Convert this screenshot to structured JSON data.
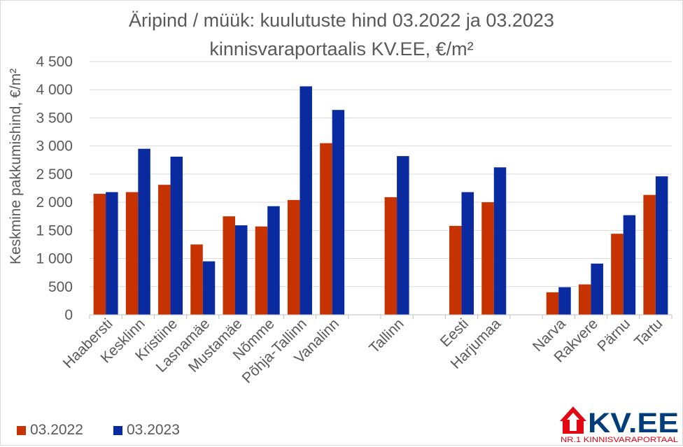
{
  "chart_data": {
    "type": "bar",
    "title": "Äripind / müük: kuulutuste hind 03.2022 ja 03.2023",
    "subtitle": "kinnisvaraportaalis KV.EE, €/m²",
    "ylabel": "Keskmine pakkumishind, €/m²",
    "xlabel": "",
    "ylim": [
      0,
      4500
    ],
    "yticks": [
      0,
      500,
      1000,
      1500,
      2000,
      2500,
      3000,
      3500,
      4000,
      4500
    ],
    "ytick_labels": [
      "0",
      "500",
      "1 000",
      "1 500",
      "2 000",
      "2 500",
      "3 000",
      "3 500",
      "4 000",
      "4 500"
    ],
    "grid": true,
    "legend_position": "bottom-left",
    "categories": [
      "Haabersti",
      "Kesklinn",
      "Kristiine",
      "Lasnamäe",
      "Mustamäe",
      "Nõmme",
      "Põhja-Tallinn",
      "Vanalinn",
      "",
      "Tallinn",
      "",
      "Eesti",
      "Harjumaa",
      "",
      "Narva",
      "Rakvere",
      "Pärnu",
      "Tartu"
    ],
    "series": [
      {
        "name": "03.2022",
        "color": "#c63300",
        "values": [
          2150,
          2180,
          2310,
          1250,
          1750,
          1570,
          2040,
          3050,
          null,
          2090,
          null,
          1580,
          2000,
          null,
          400,
          540,
          1440,
          2130
        ]
      },
      {
        "name": "03.2023",
        "color": "#0a2aa0",
        "values": [
          2180,
          2950,
          2810,
          950,
          1590,
          1930,
          4060,
          3640,
          null,
          2820,
          null,
          2180,
          2620,
          null,
          490,
          910,
          1770,
          2460
        ]
      }
    ]
  },
  "logo": {
    "text": "KV.EE",
    "tagline": "NR.1 KINNISVARAPORTAAL",
    "red": "#e30613",
    "navy": "#003d7a"
  }
}
